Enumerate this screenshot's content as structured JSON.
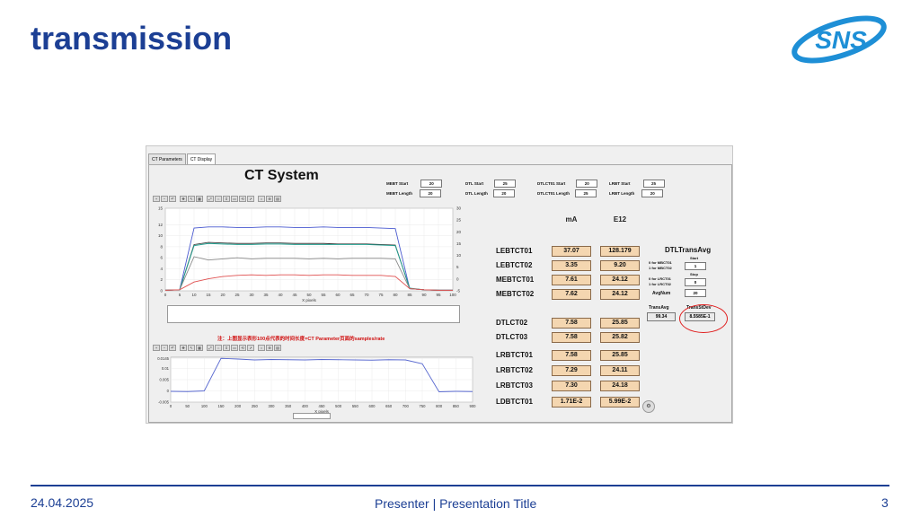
{
  "slide": {
    "title": "transmission",
    "logo_text": "SNS",
    "footer": {
      "date": "24.04.2025",
      "center": "Presenter | Presentation Title",
      "page": "3"
    },
    "colors": {
      "title": "#1c3f94",
      "logo": "#1e8fd6"
    }
  },
  "app": {
    "tabs": [
      "CT Parameters",
      "CT Display"
    ],
    "active_tab": "CT Display",
    "title": "CT System",
    "params": [
      {
        "label": "MEBT Start",
        "value": "20"
      },
      {
        "label": "MEBT Length",
        "value": "20"
      },
      {
        "label": "DTL Start",
        "value": "25"
      },
      {
        "label": "DTL Length",
        "value": "20"
      },
      {
        "label": "DTLCT01 Start",
        "value": "20"
      },
      {
        "label": "DTLCT01 Length",
        "value": "25"
      },
      {
        "label": "LRBT Start",
        "value": "25"
      },
      {
        "label": "LRBT Length",
        "value": "20"
      }
    ],
    "toolbar_icons": [
      "zoom-in-icon",
      "zoom-out-icon",
      "undo-icon",
      "pan-icon",
      "cursor-icon",
      "graph-icon",
      "fit-icon",
      "zoom-x-icon",
      "zoom-y-icon",
      "zoom-box-icon",
      "reset-icon",
      "select-icon",
      "search-icon",
      "search-plus-icon",
      "save-icon"
    ],
    "note": "注：上图显示表形100点代表的时间长度=CT Parameter页面的samples/rate",
    "table": {
      "headers": [
        "mA",
        "E12"
      ],
      "rows": [
        {
          "name": "LEBTCT01",
          "ma": "37.07",
          "e12": "128.179"
        },
        {
          "name": "LEBTCT02",
          "ma": "3.35",
          "e12": "9.20"
        },
        {
          "name": "MEBTCT01",
          "ma": "7.61",
          "e12": "24.12"
        },
        {
          "name": "MEBTCT02",
          "ma": "7.62",
          "e12": "24.12"
        },
        {
          "name": "DTLCT02",
          "ma": "7.58",
          "e12": "25.85"
        },
        {
          "name": "DTLCT03",
          "ma": "7.58",
          "e12": "25.82"
        },
        {
          "name": "LRBTCT01",
          "ma": "7.58",
          "e12": "25.85"
        },
        {
          "name": "LRBTCT02",
          "ma": "7.29",
          "e12": "24.11"
        },
        {
          "name": "LRBTCT03",
          "ma": "7.30",
          "e12": "24.18"
        },
        {
          "name": "LDBTCT01",
          "ma": "1.71E-2",
          "e12": "5.99E-2"
        }
      ]
    },
    "side": {
      "title": "DTLTransAvg",
      "start_label": "Start",
      "start_hint": [
        "0 for MBCT01",
        "1 for MBCT02"
      ],
      "start_value": "1",
      "stop_label": "Stop",
      "stop_hint": [
        "0 for LRCT01",
        "1 for LRCT02"
      ],
      "stop_value": "0",
      "avgnum_label": "AvgNum",
      "avgnum_value": "20",
      "trans_avg_label": "TransAvg",
      "trans_avg_value": "99.34",
      "trans_std_label": "TransStDev",
      "trans_std_value": "8.5585E-1",
      "highlight_color": "#e02020"
    }
  },
  "chart_data": [
    {
      "type": "line",
      "x": [
        0,
        5,
        10,
        15,
        20,
        25,
        30,
        35,
        40,
        45,
        50,
        55,
        60,
        65,
        70,
        75,
        80,
        85,
        90,
        95,
        100
      ],
      "xlabel": "X pixels",
      "xlim": [
        0,
        100
      ],
      "ylim_left": [
        0,
        15
      ],
      "ylim_right": [
        -5,
        30
      ],
      "yticks_left": [
        0,
        2,
        4,
        6,
        8,
        10,
        12,
        15
      ],
      "yticks_right": [
        -5,
        0,
        5,
        10,
        15,
        20,
        25,
        30
      ],
      "series": [
        {
          "color": "#4a5ad0",
          "values": [
            0.1,
            0.2,
            11.4,
            11.6,
            11.6,
            11.5,
            11.5,
            11.6,
            11.6,
            11.5,
            11.5,
            11.6,
            11.5,
            11.5,
            11.5,
            11.4,
            11.3,
            0.4,
            0.2,
            0.1,
            0.1
          ]
        },
        {
          "color": "#3a3a3a",
          "values": [
            0.1,
            0.2,
            8.4,
            8.8,
            8.7,
            8.6,
            8.6,
            8.7,
            8.7,
            8.6,
            8.6,
            8.6,
            8.5,
            8.5,
            8.5,
            8.4,
            8.3,
            0.4,
            0.2,
            0.1,
            0.1
          ]
        },
        {
          "color": "#20a090",
          "values": [
            0.1,
            0.2,
            8.2,
            8.6,
            8.5,
            8.4,
            8.4,
            8.5,
            8.5,
            8.4,
            8.4,
            8.4,
            8.4,
            8.4,
            8.4,
            8.3,
            8.2,
            0.5,
            0.2,
            0.1,
            0.1
          ]
        },
        {
          "color": "#8a8a8a",
          "values": [
            0.1,
            0.2,
            6.2,
            5.6,
            5.8,
            6.0,
            5.8,
            5.9,
            5.9,
            5.9,
            5.8,
            5.9,
            5.8,
            5.9,
            5.9,
            5.9,
            5.8,
            0.4,
            0.2,
            0.1,
            0.1
          ]
        },
        {
          "color": "#e05050",
          "values": [
            0.1,
            0.2,
            1.6,
            2.2,
            2.6,
            2.8,
            2.9,
            2.8,
            2.9,
            2.9,
            2.8,
            2.9,
            2.9,
            2.8,
            2.8,
            2.8,
            2.6,
            0.4,
            0.2,
            0.1,
            0.1
          ]
        }
      ]
    },
    {
      "type": "line",
      "x": [
        0,
        50,
        100,
        150,
        200,
        250,
        300,
        350,
        400,
        450,
        500,
        550,
        600,
        650,
        700,
        750,
        800,
        850,
        900
      ],
      "xlabel": "X pixels",
      "xlim": [
        0,
        900
      ],
      "ylim": [
        -0.005,
        0.015
      ],
      "yticks": [
        "-0.005",
        "0",
        "0.005",
        "0.01",
        "0.0145"
      ],
      "xticks": [
        0,
        50,
        100,
        150,
        200,
        250,
        300,
        350,
        400,
        450,
        500,
        550,
        600,
        650,
        700,
        750,
        800,
        850,
        900
      ],
      "series": [
        {
          "color": "#5a6ad0",
          "values": [
            -0.0002,
            -0.0003,
            0.0,
            0.0145,
            0.0142,
            0.0138,
            0.014,
            0.0139,
            0.0138,
            0.014,
            0.0139,
            0.0138,
            0.0137,
            0.0139,
            0.0138,
            0.0121,
            -0.0004,
            -0.0002,
            -0.0003
          ]
        }
      ]
    }
  ]
}
